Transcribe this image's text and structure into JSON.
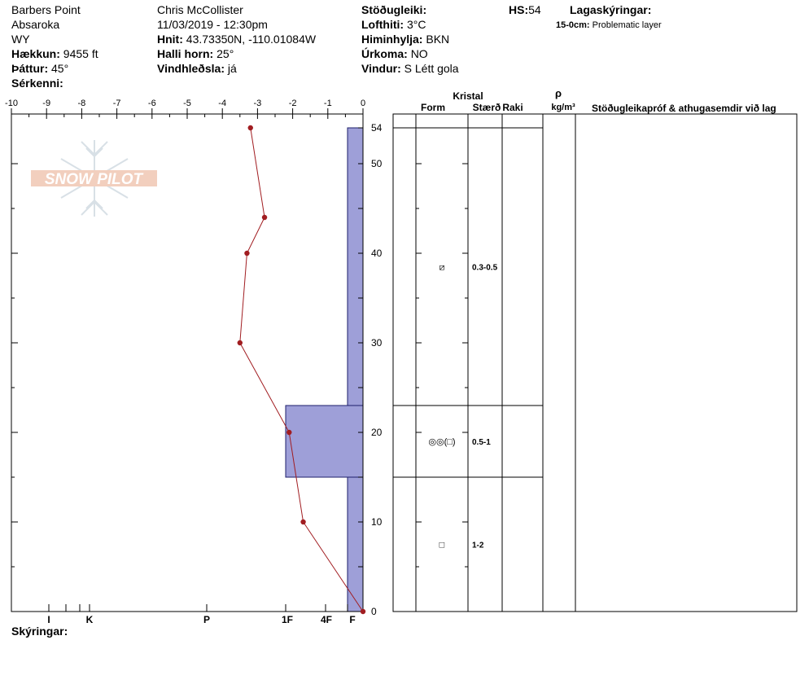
{
  "header": {
    "location": "Barbers Point",
    "range": "Absaroka",
    "state": "WY",
    "elevation_label": "Hækkun:",
    "elevation": "9455 ft",
    "aspect_label": "Þáttur:",
    "aspect": "45°",
    "features_label": "Sérkenni:",
    "observer": "Chris McCollister",
    "datetime": "11/03/2019 - 12:30pm",
    "coords_label": "Hnit:",
    "coords": "43.73350N, -110.01084W",
    "slope_label": "Halli horn:",
    "slope": "25°",
    "wind_loading_label": "Vindhleðsla:",
    "wind_loading": "já",
    "stability_label": "Stöðugleiki:",
    "air_temp_label": "Lofthiti:",
    "air_temp": "3°C",
    "sky_label": "Himinhylja:",
    "sky": "BKN",
    "precip_label": "Úrkoma:",
    "precip": "NO",
    "wind_label": "Vindur:",
    "wind": "S Létt gola",
    "hs_label": "HS:",
    "hs_value": "54",
    "legend_title": "Lagaskýringar:",
    "legend_range": "15-0cm:",
    "legend_text": "Problematic layer",
    "notes_label": "Skýringar:",
    "logo_text": "SNOW PILOT"
  },
  "table_headers": {
    "crystal": "Kristal",
    "form": "Form",
    "size": "Stærð",
    "moisture": "Raki",
    "rho": "ρ",
    "density_unit": "kg/m³",
    "comments": "Stöðugleikapróf & athugasemdir við lag"
  },
  "chart_data": {
    "type": "snow-profile",
    "temperature_axis": {
      "ticks": [
        "-10",
        "-9",
        "-8",
        "-7",
        "-6",
        "-5",
        "-4",
        "-3",
        "-2",
        "-1",
        "0"
      ],
      "range": [
        -10,
        0
      ]
    },
    "height_axis": {
      "ticks": [
        "54",
        "50",
        "40",
        "30",
        "20",
        "10",
        "0"
      ],
      "range": [
        0,
        54
      ]
    },
    "hardness_axis": {
      "ticks": [
        "I",
        "K",
        "P",
        "1F",
        "4F",
        "F"
      ]
    },
    "temperature_profile": [
      {
        "height": 54,
        "temp": -3.2
      },
      {
        "height": 44,
        "temp": -2.8
      },
      {
        "height": 40,
        "temp": -3.3
      },
      {
        "height": 30,
        "temp": -3.5
      },
      {
        "height": 20,
        "temp": -2.1
      },
      {
        "height": 10,
        "temp": -1.7
      },
      {
        "height": 0,
        "temp": 0
      }
    ],
    "hardness_layers": [
      {
        "top": 54,
        "bottom": 23,
        "hardness": "F"
      },
      {
        "top": 23,
        "bottom": 15,
        "hardness": "1F"
      },
      {
        "top": 15,
        "bottom": 0,
        "hardness": "F"
      }
    ],
    "layers": [
      {
        "top": 54,
        "bottom": 23,
        "form": "⧄",
        "size": "0.3-0.5"
      },
      {
        "top": 23,
        "bottom": 15,
        "form": "◎◎(□)",
        "size": "0.5-1"
      },
      {
        "top": 15,
        "bottom": 0,
        "form": "□",
        "size": "1-2"
      }
    ],
    "colors": {
      "hardness_fill": "#9e9fd8",
      "temp_line": "#a11d21"
    }
  }
}
